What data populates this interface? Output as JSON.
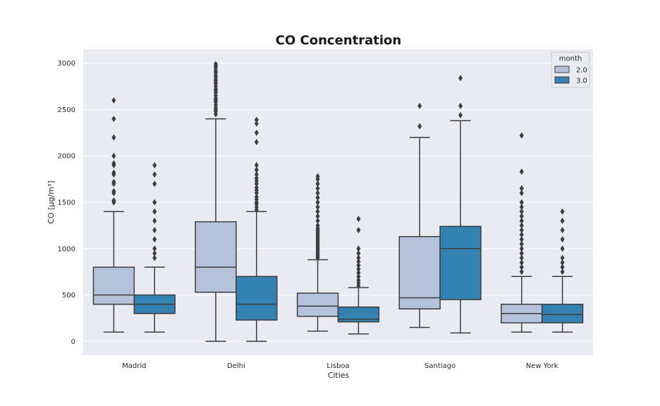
{
  "chart_data": {
    "type": "box",
    "title": "CO Concentration",
    "xlabel": "Cities",
    "ylabel": "CO [µg/m³]",
    "ylim": [
      -150,
      3150
    ],
    "yticks": [
      0,
      500,
      1000,
      1500,
      2000,
      2500,
      3000
    ],
    "grid": true,
    "legend": {
      "title": "month",
      "placement": "top-right"
    },
    "categories": [
      "Madrid",
      "Delhi",
      "Lisboa",
      "Santiago",
      "New York"
    ],
    "series": [
      {
        "name": "2.0",
        "color": "#b4c3db",
        "boxes": [
          {
            "whisker_low": 100,
            "q1": 400,
            "median": 500,
            "q3": 800,
            "whisker_high": 1400,
            "outliers": [
              1500,
              1520,
              1600,
              1620,
              1700,
              1720,
              1800,
              1820,
              1900,
              1920,
              2000,
              2200,
              2400,
              2600
            ]
          },
          {
            "whisker_low": 0,
            "q1": 530,
            "median": 800,
            "q3": 1290,
            "whisker_high": 2400,
            "outliers": [
              2450,
              2480,
              2500,
              2520,
              2550,
              2580,
              2600,
              2620,
              2650,
              2680,
              2700,
              2720,
              2750,
              2780,
              2800,
              2820,
              2850,
              2870,
              2900,
              2920,
              2950,
              2970,
              2990
            ]
          },
          {
            "whisker_low": 110,
            "q1": 270,
            "median": 380,
            "q3": 520,
            "whisker_high": 880,
            "outliers": [
              900,
              920,
              940,
              960,
              980,
              1000,
              1020,
              1040,
              1060,
              1080,
              1100,
              1120,
              1140,
              1160,
              1180,
              1200,
              1220,
              1250,
              1300,
              1350,
              1400,
              1450,
              1500,
              1550,
              1600,
              1650,
              1700,
              1750,
              1780
            ]
          },
          {
            "whisker_low": 150,
            "q1": 350,
            "median": 470,
            "q3": 1130,
            "whisker_high": 2200,
            "outliers": [
              2320,
              2540
            ]
          },
          {
            "whisker_low": 100,
            "q1": 200,
            "median": 300,
            "q3": 400,
            "whisker_high": 700,
            "outliers": [
              750,
              800,
              850,
              900,
              950,
              1000,
              1050,
              1100,
              1150,
              1200,
              1250,
              1300,
              1350,
              1400,
              1450,
              1500,
              1600,
              1650,
              1830,
              2220
            ]
          }
        ]
      },
      {
        "name": "3.0",
        "color": "#3382b2",
        "boxes": [
          {
            "whisker_low": 100,
            "q1": 300,
            "median": 400,
            "q3": 500,
            "whisker_high": 800,
            "outliers": [
              900,
              950,
              1000,
              1100,
              1200,
              1300,
              1400,
              1500,
              1700,
              1800,
              1900
            ]
          },
          {
            "whisker_low": 0,
            "q1": 230,
            "median": 400,
            "q3": 700,
            "whisker_high": 1400,
            "outliers": [
              1420,
              1450,
              1480,
              1500,
              1530,
              1560,
              1600,
              1630,
              1660,
              1700,
              1730,
              1760,
              1800,
              1850,
              1900,
              2150,
              2250,
              2350,
              2390
            ]
          },
          {
            "whisker_low": 80,
            "q1": 210,
            "median": 240,
            "q3": 370,
            "whisker_high": 580,
            "outliers": [
              600,
              630,
              660,
              700,
              740,
              780,
              820,
              860,
              900,
              950,
              1000,
              1200,
              1320
            ]
          },
          {
            "whisker_low": 90,
            "q1": 450,
            "median": 1000,
            "q3": 1240,
            "whisker_high": 2380,
            "outliers": [
              2440,
              2540,
              2840
            ]
          },
          {
            "whisker_low": 100,
            "q1": 200,
            "median": 290,
            "q3": 400,
            "whisker_high": 700,
            "outliers": [
              750,
              800,
              850,
              900,
              1000,
              1100,
              1200,
              1300,
              1400
            ]
          }
        ]
      }
    ]
  }
}
